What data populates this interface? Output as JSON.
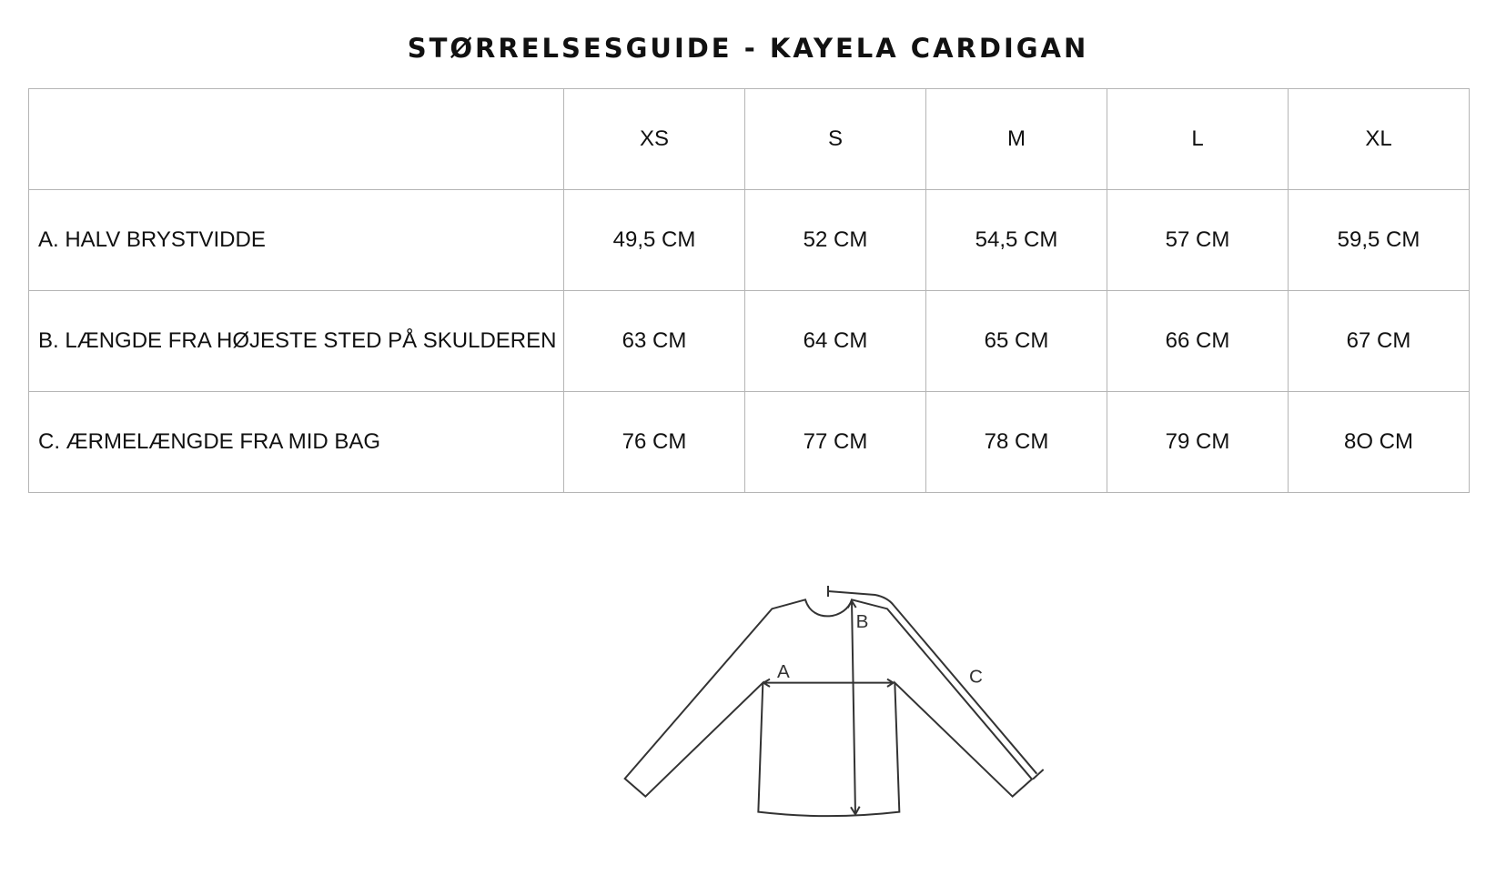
{
  "title": "STØRRELSESGUIDE - KAYELA CARDIGAN",
  "table": {
    "sizes": [
      "XS",
      "S",
      "M",
      "L",
      "XL"
    ],
    "rows": [
      {
        "label": "A. HALV BRYSTVIDDE",
        "values": [
          "49,5 CM",
          "52 CM",
          "54,5 CM",
          "57 CM",
          "59,5 CM"
        ]
      },
      {
        "label": "B. LÆNGDE FRA HØJESTE STED PÅ SKULDEREN",
        "values": [
          "63 CM",
          "64 CM",
          "65 CM",
          "66 CM",
          "67 CM"
        ]
      },
      {
        "label": "C. ÆRMELÆNGDE FRA MID BAG",
        "values": [
          "76 CM",
          "77 CM",
          "78 CM",
          "79 CM",
          "8O CM"
        ]
      }
    ]
  },
  "diagram": {
    "label_a": "A",
    "label_b": "B",
    "label_c": "C"
  }
}
